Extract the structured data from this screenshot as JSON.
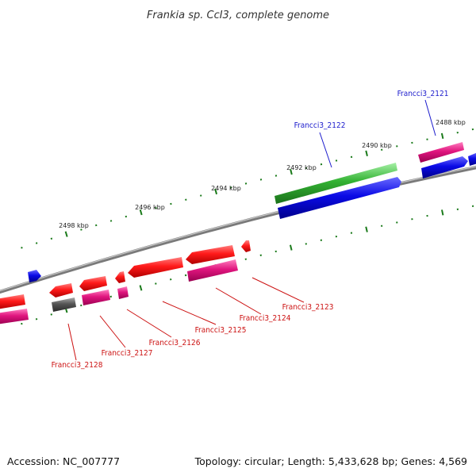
{
  "title": "Frankia sp. CcI3, complete genome",
  "footer": {
    "accession": "Accession: NC_007777",
    "info": "Topology: circular; Length: 5,433,628 bp; Genes: 4,569"
  },
  "scale_labels": [
    "2498 kbp",
    "2496 kbp",
    "2494 kbp",
    "2492 kbp",
    "2490 kbp",
    "2488 kbp"
  ],
  "gene_labels": {
    "top": [
      "Francci3_2122",
      "Francci3_2121"
    ],
    "bottom": [
      "Francci3_2128",
      "Francci3_2127",
      "Francci3_2126",
      "Francci3_2125",
      "Francci3_2124",
      "Francci3_2123"
    ]
  },
  "colors": {
    "backbone": "#7a7a7a",
    "red": "#ee1111",
    "pink": "#e0157e",
    "blue": "#0a0ae6",
    "green": "#33b233",
    "gray": "#555555",
    "tick": "#1a7a1a",
    "top_label": "#1a1acc",
    "bottom_label": "#cc1111"
  }
}
